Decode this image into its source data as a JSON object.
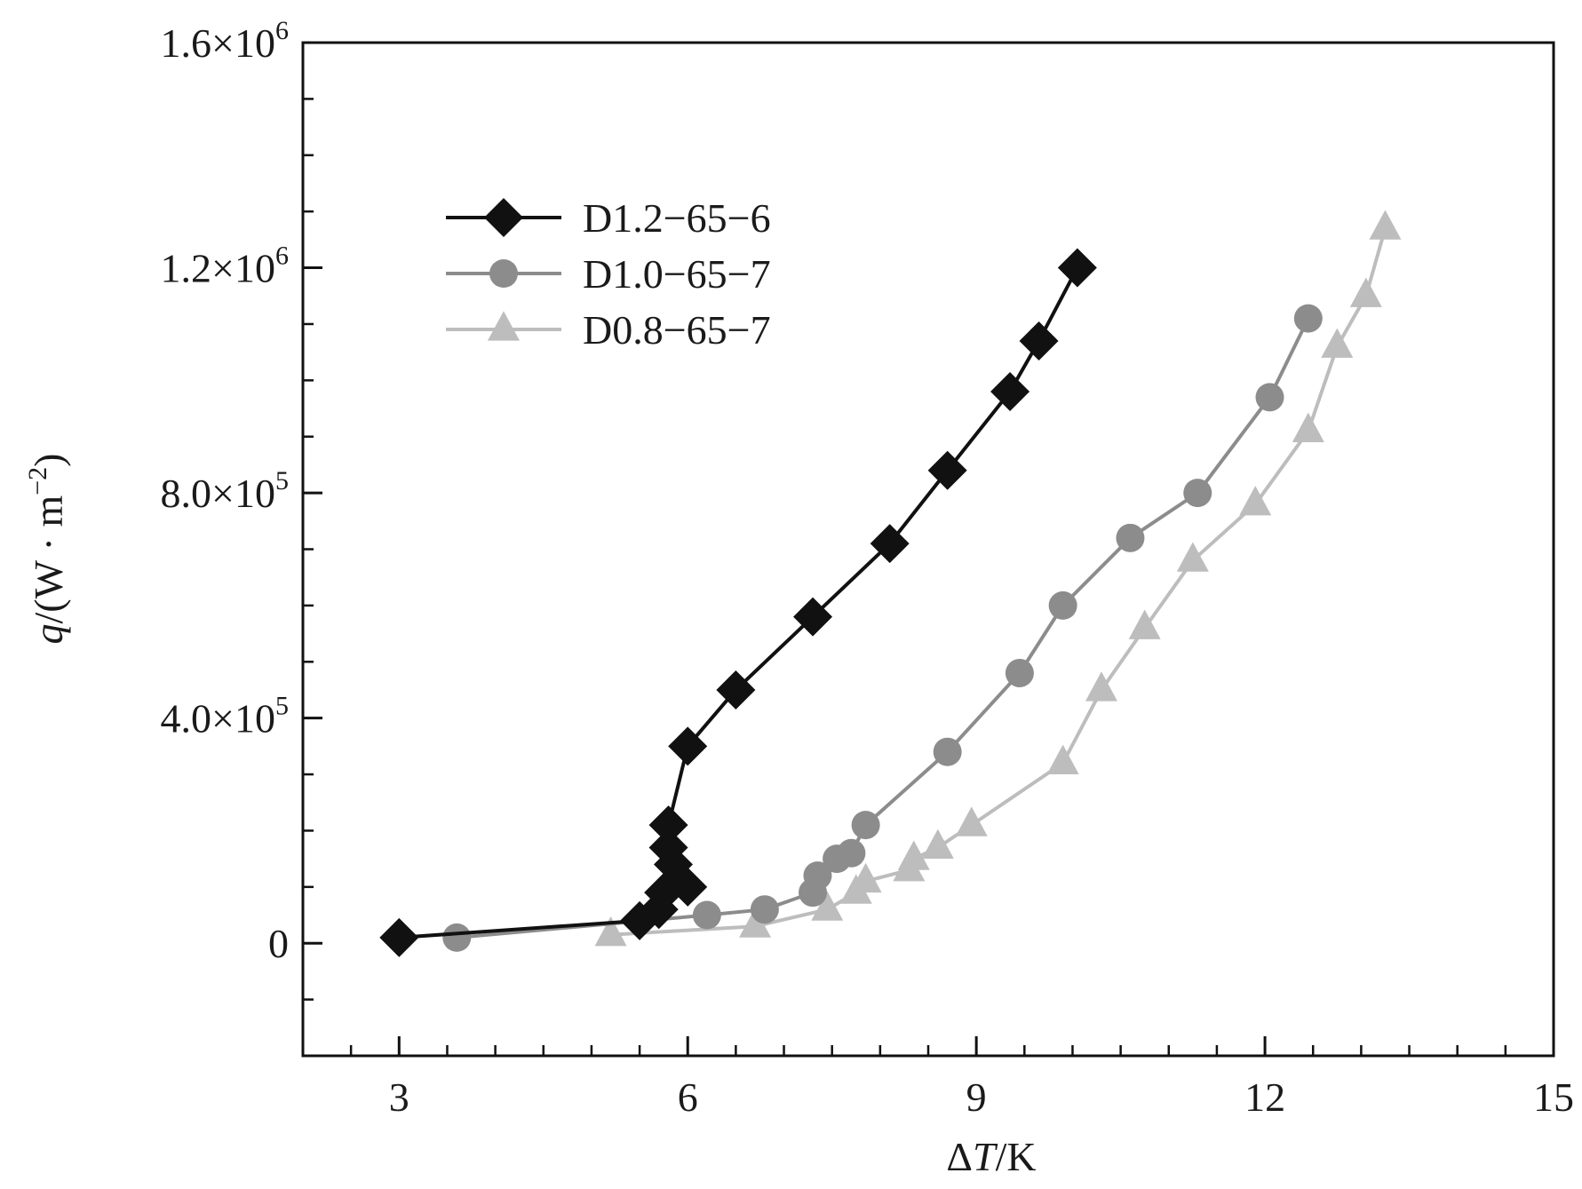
{
  "chart_data": {
    "type": "line",
    "xlabel_parts": [
      "Δ",
      "T",
      "/K"
    ],
    "ylabel_parts": [
      "q",
      "/(W · m",
      "−2",
      ")"
    ],
    "xlim": [
      2,
      15
    ],
    "ylim": [
      -200000,
      1600000
    ],
    "x_ticks": [
      3,
      6,
      9,
      12,
      15
    ],
    "x_tick_labels": [
      "3",
      "6",
      "9",
      "12",
      "15"
    ],
    "x_minor_step": 0.5,
    "y_ticks": [
      0,
      400000,
      800000,
      1200000,
      1600000
    ],
    "y_tick_labels": [
      {
        "mantissa": "0",
        "exp": ""
      },
      {
        "mantissa": "4.0×10",
        "exp": "5"
      },
      {
        "mantissa": "8.0×10",
        "exp": "5"
      },
      {
        "mantissa": "1.2×10",
        "exp": "6"
      },
      {
        "mantissa": "1.6×10",
        "exp": "6"
      }
    ],
    "y_minor_step": 100000,
    "grid": false,
    "legend_position": "top-left",
    "series": [
      {
        "name": "D1.2−65−6",
        "color": "#111111",
        "marker": "diamond",
        "x": [
          3.0,
          5.5,
          5.7,
          5.75,
          6.0,
          5.85,
          5.8,
          5.8,
          6.0,
          6.5,
          7.3,
          8.1,
          8.7,
          9.35,
          9.65,
          10.05
        ],
        "y": [
          10000,
          40000,
          60000,
          90000,
          100000,
          140000,
          170000,
          210000,
          350000,
          450000,
          580000,
          710000,
          840000,
          980000,
          1070000,
          1200000
        ]
      },
      {
        "name": "D1.0−65−7",
        "color": "#8c8c8c",
        "marker": "circle",
        "x": [
          3.6,
          6.2,
          6.8,
          7.3,
          7.35,
          7.55,
          7.7,
          7.85,
          8.7,
          9.45,
          9.9,
          10.6,
          11.3,
          12.05,
          12.45
        ],
        "y": [
          10000,
          50000,
          60000,
          90000,
          120000,
          150000,
          160000,
          210000,
          340000,
          480000,
          600000,
          720000,
          800000,
          970000,
          1110000
        ]
      },
      {
        "name": "D0.8−65−7",
        "color": "#bdbdbd",
        "marker": "triangle",
        "x": [
          5.2,
          6.7,
          7.45,
          7.75,
          7.85,
          8.3,
          8.35,
          8.6,
          8.95,
          9.9,
          10.3,
          10.75,
          11.25,
          11.9,
          12.45,
          12.75,
          13.05,
          13.25
        ],
        "y": [
          15000,
          30000,
          60000,
          90000,
          110000,
          130000,
          150000,
          170000,
          210000,
          320000,
          450000,
          560000,
          680000,
          780000,
          910000,
          1060000,
          1150000,
          1270000
        ]
      }
    ]
  }
}
